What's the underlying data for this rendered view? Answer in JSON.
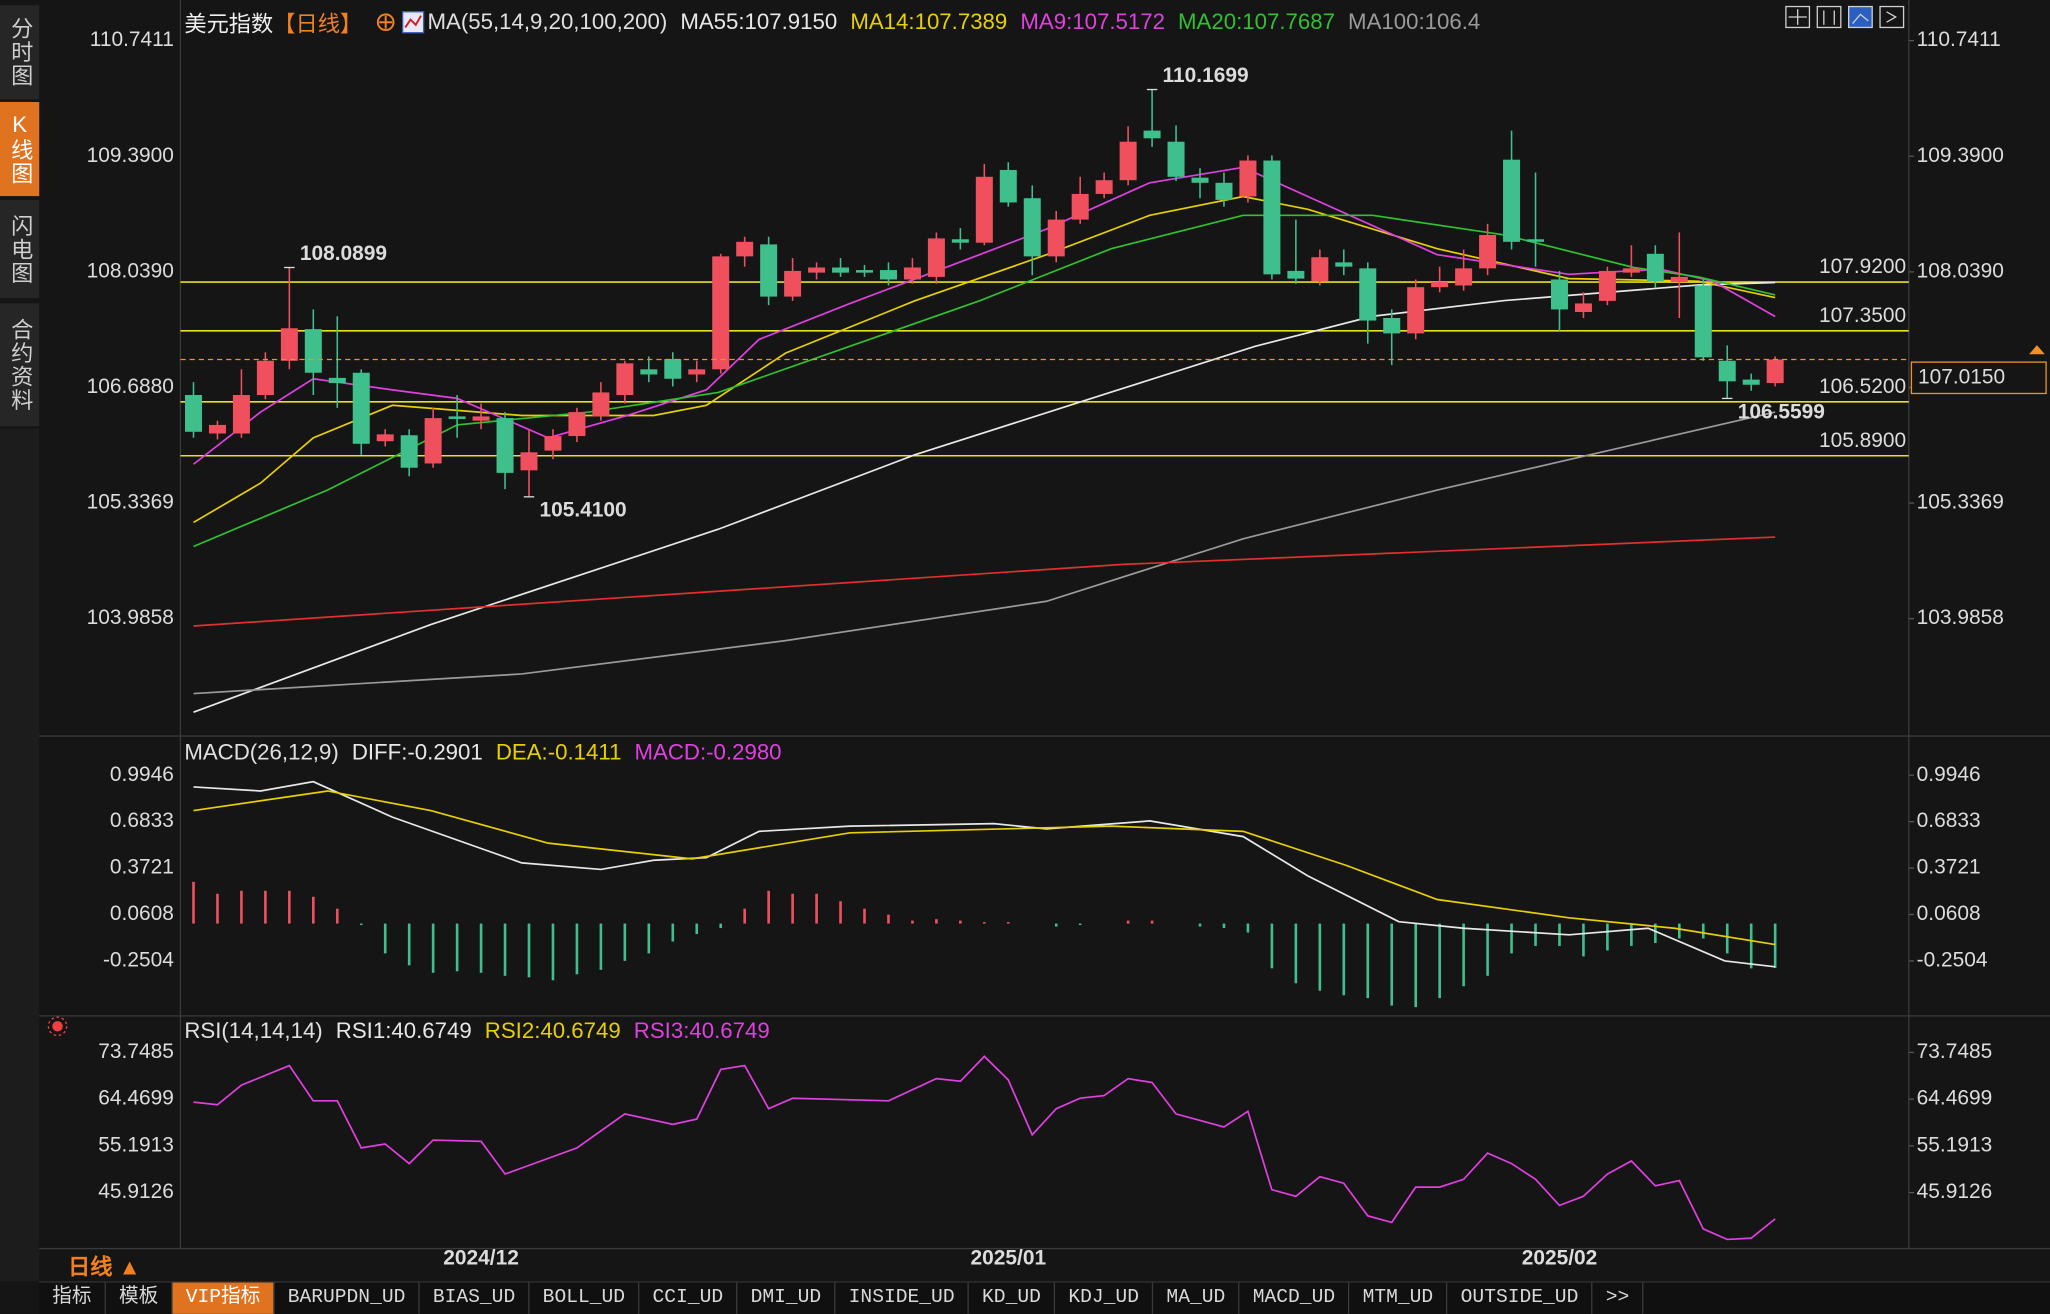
{
  "sidebar": [
    "分时图",
    "K线图",
    "闪电图",
    "合约资料"
  ],
  "header": {
    "symbol": "美元指数",
    "period": "【日线】"
  },
  "period_label": "日线 ▲",
  "toolbar": [
    "指标",
    "模板",
    "VIP指标",
    "BARUPDN_UD",
    "BIAS_UD",
    "BOLL_UD",
    "CCI_UD",
    "DMI_UD",
    "INSIDE_UD",
    "KD_UD",
    "KDJ_UD",
    "MA_UD",
    "MACD_UD",
    "MTM_UD",
    "OUTSIDE_UD",
    ">>"
  ],
  "chart_data": [
    {
      "type": "candlestick",
      "title": "MA(55,14,9,20,100,200)",
      "up_color": "#f0505e",
      "down_color": "#3fbf8c",
      "categories": [
        null,
        null,
        null,
        null,
        null,
        null,
        null,
        null,
        null,
        null,
        null,
        null,
        "2024/12",
        null,
        null,
        null,
        null,
        null,
        null,
        null,
        null,
        null,
        null,
        null,
        null,
        null,
        null,
        null,
        null,
        null,
        null,
        null,
        null,
        null,
        "2025/01",
        null,
        null,
        null,
        null,
        null,
        null,
        null,
        null,
        null,
        null,
        null,
        null,
        null,
        null,
        null,
        null,
        null,
        null,
        null,
        null,
        null,
        null,
        "2025/02",
        null,
        null,
        null,
        null,
        null,
        null,
        null,
        null,
        null
      ],
      "open": [
        106.6,
        106.15,
        106.15,
        106.6,
        107.0,
        107.37,
        106.8,
        106.86,
        106.06,
        106.13,
        105.8,
        106.35,
        106.3,
        106.33,
        105.72,
        105.95,
        106.12,
        106.35,
        106.6,
        106.9,
        107.02,
        106.84,
        106.9,
        108.22,
        108.36,
        107.75,
        108.03,
        108.09,
        108.06,
        108.06,
        107.95,
        107.98,
        108.42,
        108.38,
        109.23,
        108.9,
        108.22,
        108.65,
        108.95,
        109.11,
        109.69,
        109.56,
        109.14,
        109.08,
        108.92,
        109.34,
        108.05,
        107.93,
        108.15,
        108.08,
        107.5,
        107.32,
        107.86,
        107.88,
        108.08,
        109.35,
        108.42,
        107.95,
        107.57,
        107.7,
        108.03,
        108.25,
        107.92,
        107.88,
        107.0,
        106.78,
        106.74
      ],
      "close": [
        106.17,
        106.25,
        106.6,
        107.0,
        107.38,
        106.86,
        106.74,
        106.03,
        106.14,
        105.75,
        106.33,
        106.32,
        106.35,
        105.69,
        105.93,
        106.12,
        106.4,
        106.63,
        106.97,
        106.84,
        106.79,
        106.9,
        108.22,
        108.39,
        107.75,
        108.05,
        108.09,
        108.03,
        108.03,
        107.95,
        108.09,
        108.43,
        108.38,
        109.15,
        108.85,
        108.22,
        108.65,
        108.95,
        109.11,
        109.56,
        109.6,
        109.15,
        109.08,
        108.88,
        109.34,
        108.01,
        107.96,
        108.21,
        108.1,
        107.47,
        107.32,
        107.86,
        107.92,
        108.08,
        108.47,
        108.39,
        108.39,
        107.6,
        107.67,
        108.05,
        108.08,
        107.93,
        107.98,
        107.04,
        106.76,
        106.72,
        107.015
      ],
      "high": [
        106.75,
        106.3,
        106.9,
        107.1,
        108.0899,
        107.6,
        107.52,
        106.9,
        106.2,
        106.2,
        106.45,
        106.6,
        106.5,
        106.4,
        106.2,
        106.2,
        106.45,
        106.75,
        107.0,
        107.05,
        107.1,
        107.0,
        108.25,
        108.45,
        108.45,
        108.2,
        108.15,
        108.2,
        108.12,
        108.15,
        108.2,
        108.5,
        108.55,
        109.3,
        109.32,
        109.05,
        108.75,
        109.15,
        109.2,
        109.74,
        110.1699,
        109.75,
        109.25,
        109.2,
        109.4,
        109.4,
        108.65,
        108.3,
        108.3,
        108.15,
        107.6,
        107.95,
        108.1,
        108.3,
        108.6,
        109.69,
        109.2,
        108.05,
        107.8,
        108.1,
        108.35,
        108.35,
        108.5,
        107.95,
        107.18,
        106.85,
        107.05
      ],
      "low": [
        106.1,
        106.08,
        106.1,
        106.55,
        106.9,
        106.6,
        106.45,
        105.9,
        106.0,
        105.65,
        105.75,
        106.1,
        106.2,
        105.5,
        105.41,
        105.85,
        106.05,
        106.3,
        106.5,
        106.75,
        106.7,
        106.75,
        106.85,
        108.1,
        107.65,
        107.7,
        107.95,
        107.98,
        107.98,
        107.88,
        107.9,
        107.9,
        108.3,
        108.35,
        108.8,
        108.0,
        108.15,
        108.6,
        108.9,
        109.05,
        109.5,
        109.1,
        108.9,
        108.8,
        108.85,
        107.95,
        107.9,
        107.88,
        108.0,
        107.2,
        106.95,
        107.25,
        107.8,
        107.82,
        108.0,
        108.3,
        108.1,
        107.35,
        107.5,
        107.65,
        107.98,
        107.85,
        107.5,
        107.0,
        106.5599,
        106.65,
        106.7
      ],
      "high_value_labels": [
        null,
        null,
        null,
        null,
        "108.0899",
        null,
        null,
        null,
        null,
        null,
        null,
        null,
        null,
        null,
        null,
        null,
        null,
        null,
        null,
        null,
        null,
        null,
        null,
        null,
        null,
        null,
        null,
        null,
        null,
        null,
        null,
        null,
        null,
        null,
        null,
        null,
        null,
        null,
        null,
        null,
        "110.1699",
        null,
        null,
        null,
        null,
        null,
        null,
        null,
        null,
        null,
        null,
        null,
        null,
        null,
        null,
        null,
        null,
        null,
        null,
        null,
        null,
        null,
        null,
        null,
        null,
        null,
        null
      ],
      "low_value_labels": [
        null,
        null,
        null,
        null,
        null,
        null,
        null,
        null,
        null,
        null,
        null,
        null,
        null,
        null,
        "105.4100",
        null,
        null,
        null,
        null,
        null,
        null,
        null,
        null,
        null,
        null,
        null,
        null,
        null,
        null,
        null,
        null,
        null,
        null,
        null,
        null,
        null,
        null,
        null,
        null,
        null,
        null,
        null,
        null,
        null,
        null,
        null,
        null,
        null,
        null,
        null,
        null,
        null,
        null,
        null,
        null,
        null,
        null,
        null,
        null,
        null,
        null,
        null,
        null,
        null,
        "106.5599",
        null,
        null
      ],
      "high_label_color": "#f05060",
      "low_label_color": "#4fbf8c",
      "last_value_label": "107.0150",
      "last_color": "#f0902a",
      "levels": [
        {
          "value": 107.92,
          "label": "107.9200"
        },
        {
          "value": 107.35,
          "label": "107.3500"
        },
        {
          "value": 106.52,
          "label": "106.5200"
        },
        {
          "value": 105.89,
          "label": "105.8900"
        }
      ],
      "level_color": "#e8e020",
      "ylim": [
        102.66,
        110.88
      ],
      "yticks": [
        110.7411,
        {
          "value": 109.39,
          "label": "109.3900"
        },
        {
          "value": 108.039,
          "label": "108.0390"
        },
        {
          "value": 106.688,
          "label": "106.6880"
        },
        105.3369,
        103.9858
      ],
      "series": [
        {
          "name": "MA55:107.9150",
          "color": "#e8e8e8",
          "x": [
            0,
            9.9,
            21.9,
            30.1,
            38.3,
            44.3,
            49.2,
            54.7,
            62.8,
            66
          ],
          "values": [
            102.894,
            103.917,
            105.031,
            105.901,
            106.634,
            107.169,
            107.52,
            107.703,
            107.886,
            107.915
          ]
        },
        {
          "name": "MA14:107.7389",
          "color": "#e8d000",
          "x": [
            0,
            2.8,
            5,
            8.3,
            13.7,
            19.2,
            21.4,
            24.7,
            30.1,
            35.6,
            39.9,
            43.8,
            46.5,
            51.9,
            57.4,
            62.8,
            66
          ],
          "values": [
            105.11,
            105.57,
            106.1,
            106.48,
            106.36,
            106.36,
            106.48,
            107.09,
            107.7,
            108.24,
            108.7,
            108.92,
            108.77,
            108.31,
            107.96,
            107.93,
            107.7389
          ]
        },
        {
          "name": "MA9:107.5172",
          "color": "#e040e0",
          "x": [
            0,
            2.8,
            5,
            8.3,
            11,
            14.8,
            18.1,
            21.4,
            23.6,
            27.4,
            32.8,
            35.6,
            39.9,
            43.8,
            46.5,
            51.9,
            57.4,
            61.2,
            63.4,
            66
          ],
          "values": [
            105.79,
            106.4,
            106.79,
            106.66,
            106.56,
            106.1,
            106.36,
            106.66,
            107.25,
            107.67,
            108.24,
            108.54,
            109.08,
            109.26,
            108.92,
            108.24,
            108.01,
            108.07,
            107.93,
            107.5172
          ]
        },
        {
          "name": "MA20:107.7687",
          "color": "#30c030",
          "x": [
            0,
            5.6,
            11,
            16.5,
            21.9,
            27.4,
            32.8,
            38.3,
            43.8,
            49.2,
            54.7,
            60.1,
            62.8,
            66
          ],
          "values": [
            104.83,
            105.49,
            106.25,
            106.4,
            106.63,
            107.17,
            107.7,
            108.31,
            108.7,
            108.7,
            108.47,
            108.09,
            107.98,
            107.7687
          ]
        },
        {
          "name": "MA100:106.4",
          "color": "#9a9a9a",
          "x": [
            0,
            13.7,
            24.7,
            35.6,
            43.8,
            51.9,
            60.1,
            66
          ],
          "values": [
            103.11,
            103.34,
            103.73,
            104.19,
            104.92,
            105.49,
            106.02,
            106.4
          ]
        },
        {
          "color": "#e03030",
          "x": [
            0,
            38.8,
            66
          ],
          "values": [
            103.9,
            104.62,
            104.94
          ]
        }
      ]
    },
    {
      "type": "macd",
      "title": "MACD(26,12,9)",
      "ylim": [
        -0.601,
        1.231
      ],
      "yticks": [
        0.9946,
        0.6833,
        0.3721,
        0.0608,
        -0.2504
      ],
      "histogram_name": "MACD:-0.2980",
      "histogram_legend_color": "#e040e0",
      "up_color": "#f0505e",
      "down_color": "#3fbf8c",
      "histogram": [
        0.28,
        0.2,
        0.22,
        0.22,
        0.22,
        0.18,
        0.1,
        -0.01,
        -0.2,
        -0.28,
        -0.33,
        -0.32,
        -0.33,
        -0.35,
        -0.36,
        -0.38,
        -0.34,
        -0.31,
        -0.25,
        -0.2,
        -0.12,
        -0.07,
        -0.03,
        0.1,
        0.22,
        0.2,
        0.2,
        0.15,
        0.1,
        0.06,
        0.02,
        0.03,
        0.02,
        0.01,
        0.01,
        0.0,
        -0.02,
        -0.01,
        0.0,
        0.02,
        0.02,
        0.0,
        -0.02,
        -0.03,
        -0.06,
        -0.3,
        -0.4,
        -0.45,
        -0.48,
        -0.5,
        -0.55,
        -0.56,
        -0.5,
        -0.42,
        -0.35,
        -0.2,
        -0.15,
        -0.15,
        -0.22,
        -0.18,
        -0.15,
        -0.13,
        -0.1,
        -0.1,
        -0.2,
        -0.3,
        -0.298
      ],
      "series": [
        {
          "name": "DIFF:-0.2901",
          "color": "#e8e8e8",
          "x": [
            0,
            2.8,
            5,
            8.3,
            13.7,
            17,
            19.2,
            21.4,
            23.6,
            27.4,
            33.4,
            35.6,
            39.9,
            43.8,
            46.5,
            50.3,
            53,
            57.4,
            60.7,
            63.9,
            66
          ],
          "values": [
            0.916,
            0.889,
            0.951,
            0.714,
            0.407,
            0.363,
            0.425,
            0.442,
            0.618,
            0.653,
            0.67,
            0.635,
            0.688,
            0.583,
            0.32,
            0.013,
            -0.031,
            -0.075,
            -0.031,
            -0.25,
            -0.2901
          ]
        },
        {
          "name": "DEA:-0.1411",
          "color": "#e8d000",
          "x": [
            0,
            5.6,
            9.9,
            14.8,
            20.8,
            27.4,
            38.3,
            43.8,
            48.1,
            51.9,
            57.4,
            61.8,
            66
          ],
          "values": [
            0.758,
            0.889,
            0.758,
            0.539,
            0.434,
            0.609,
            0.653,
            0.618,
            0.39,
            0.162,
            0.039,
            -0.031,
            -0.1411
          ]
        }
      ]
    },
    {
      "type": "line",
      "title": "RSI(14,14,14)",
      "ylim": [
        34.79,
        80.24
      ],
      "yticks": [
        73.7485,
        64.4699,
        55.1913,
        45.9126
      ],
      "legend": [
        {
          "name": "RSI1:40.6749",
          "color": "#e8e8e8"
        },
        {
          "name": "RSI2:40.6749",
          "color": "#e8d000"
        }
      ],
      "series": [
        {
          "name": "RSI3:40.6749",
          "color": "#e040e0",
          "x": [
            0,
            1,
            2,
            4,
            5,
            6,
            7,
            8,
            9,
            10,
            12,
            13,
            16,
            18,
            20,
            21,
            22,
            23,
            24,
            25,
            29,
            31,
            32,
            33,
            34,
            35,
            36,
            37,
            38,
            39,
            40,
            41,
            43,
            44,
            45,
            46,
            47,
            48,
            49,
            50,
            51,
            52,
            53,
            54,
            55,
            56,
            57,
            58,
            59,
            60,
            61,
            62,
            63,
            64,
            65,
            66
          ],
          "values": [
            63.88,
            63.36,
            67.25,
            71.15,
            64.14,
            64.14,
            54.79,
            55.57,
            51.67,
            56.35,
            56.09,
            49.59,
            54.79,
            61.54,
            59.47,
            60.5,
            70.37,
            71.15,
            62.58,
            64.66,
            64.14,
            68.55,
            68.03,
            72.97,
            68.29,
            57.39,
            62.58,
            64.66,
            65.18,
            68.55,
            67.77,
            61.54,
            58.94,
            62.06,
            46.48,
            45.18,
            49.08,
            47.77,
            41.28,
            39.98,
            46.99,
            46.99,
            48.55,
            53.75,
            51.67,
            48.55,
            43.36,
            45.18,
            49.59,
            52.19,
            47.25,
            48.29,
            38.68,
            36.61,
            36.87,
            40.6749
          ]
        }
      ]
    }
  ]
}
